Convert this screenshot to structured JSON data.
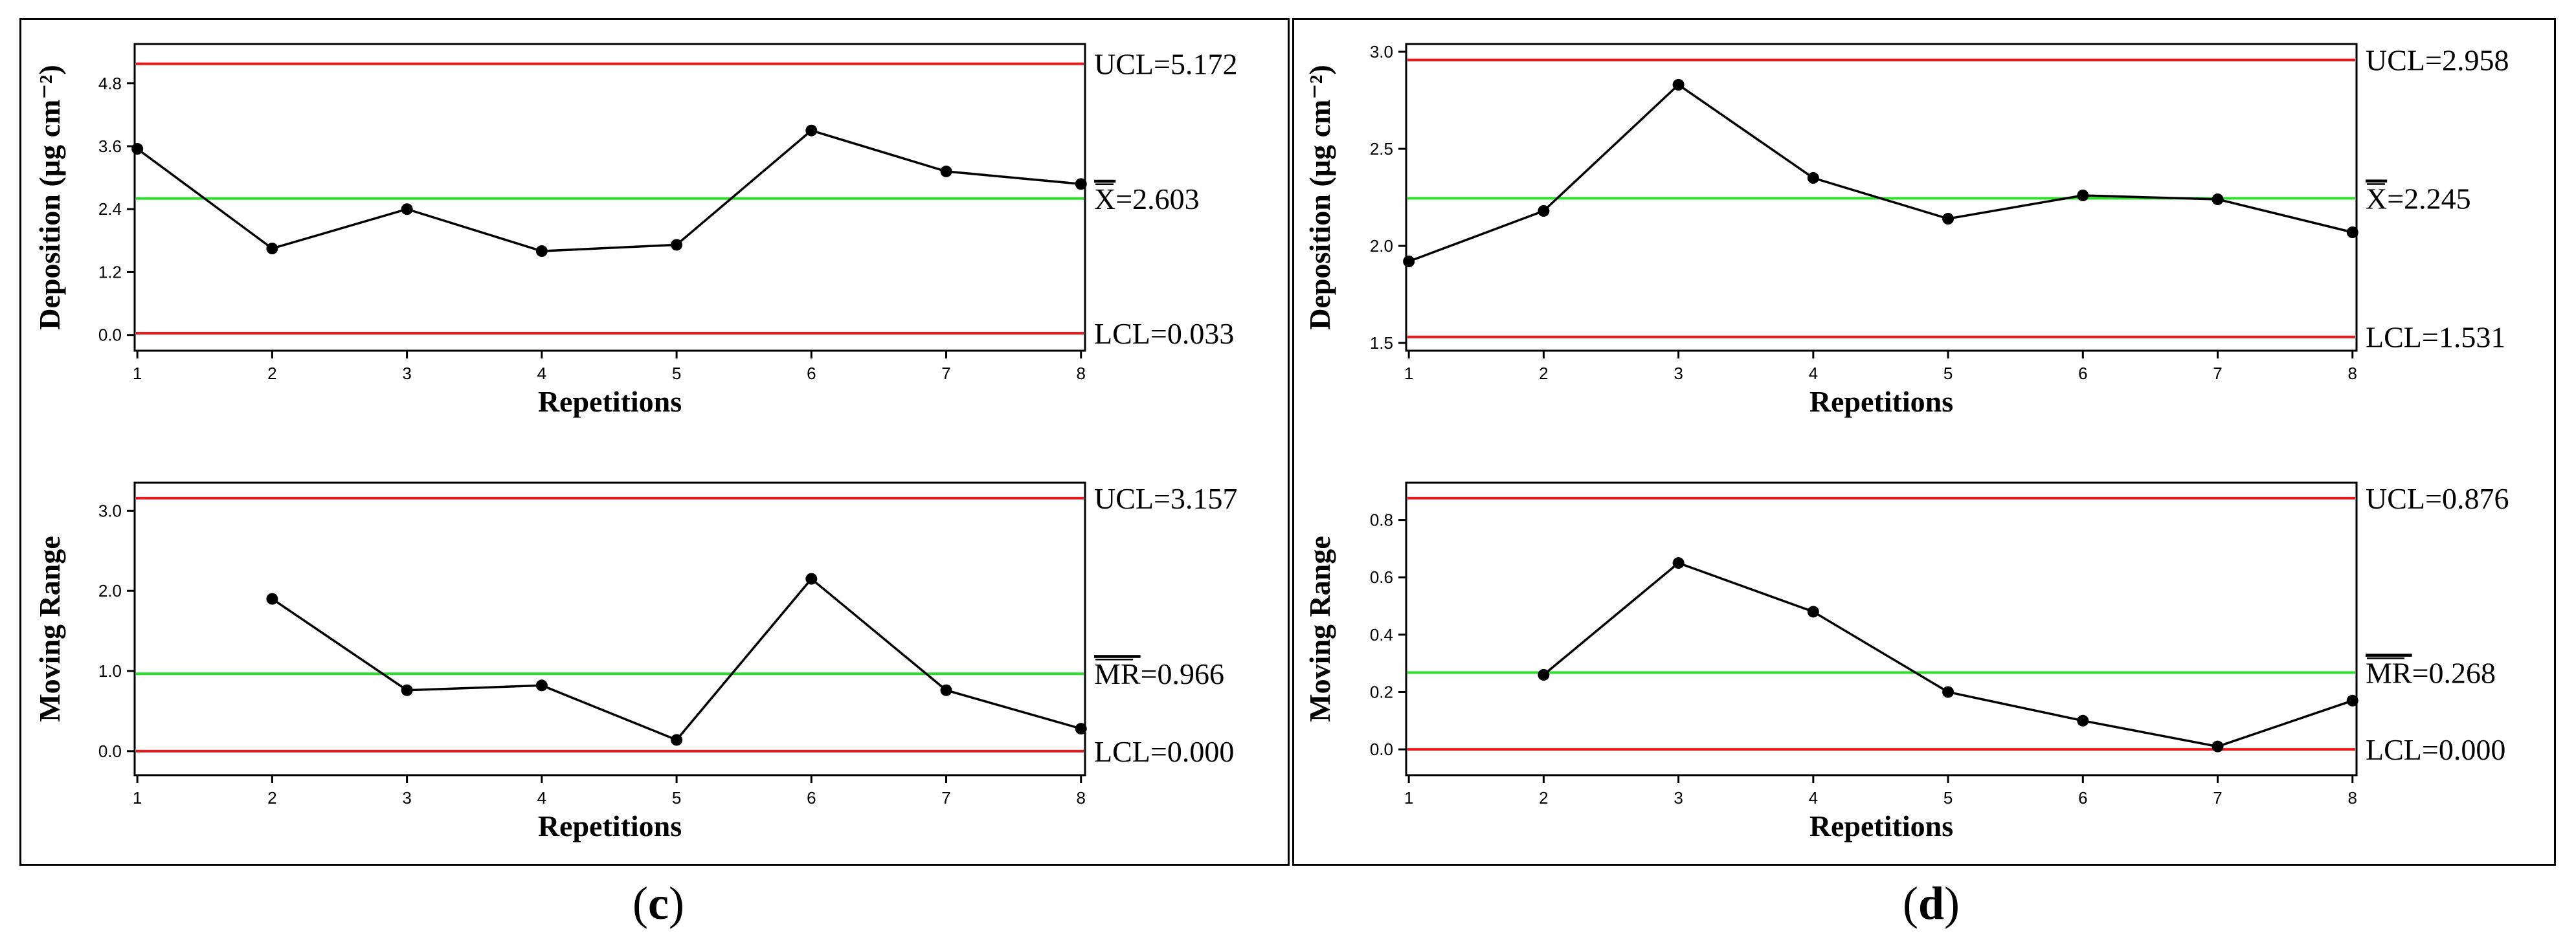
{
  "panels": [
    {
      "id": "c",
      "caption": "c"
    },
    {
      "id": "d",
      "caption": "d"
    }
  ],
  "chart_data": [
    {
      "type": "line",
      "panel": "c",
      "chart": "individuals",
      "ylabel": "Deposition (µg cm⁻²)",
      "xlabel": "Repetitions",
      "x": [
        1,
        2,
        3,
        4,
        5,
        6,
        7,
        8
      ],
      "values": [
        3.55,
        1.65,
        2.4,
        1.6,
        1.72,
        3.9,
        3.12,
        2.88
      ],
      "xticks": [
        "1",
        "2",
        "3",
        "4",
        "5",
        "6",
        "7",
        "8"
      ],
      "yticks": [
        "0.0",
        "1.2",
        "2.4",
        "3.6",
        "4.8"
      ],
      "ylim": [
        -0.3,
        5.55
      ],
      "ucl": 5.172,
      "center": 2.603,
      "lcl": 0.033,
      "ucl_label": "UCL=5.172",
      "center_label_symbol": "X",
      "center_label_value": "=2.603",
      "lcl_label": "LCL=0.033"
    },
    {
      "type": "line",
      "panel": "c",
      "chart": "moving-range",
      "ylabel": "Moving Range",
      "xlabel": "Repetitions",
      "x": [
        2,
        3,
        4,
        5,
        6,
        7,
        8
      ],
      "values": [
        1.9,
        0.76,
        0.82,
        0.14,
        2.15,
        0.76,
        0.28
      ],
      "xticks": [
        "1",
        "2",
        "3",
        "4",
        "5",
        "6",
        "7",
        "8"
      ],
      "yticks": [
        "0.0",
        "1.0",
        "2.0",
        "3.0"
      ],
      "ylim": [
        -0.3,
        3.35
      ],
      "ucl": 3.157,
      "center": 0.966,
      "lcl": 0.0,
      "ucl_label": "UCL=3.157",
      "center_label_symbol": "MR",
      "center_label_value": "=0.966",
      "lcl_label": "LCL=0.000"
    },
    {
      "type": "line",
      "panel": "d",
      "chart": "individuals",
      "ylabel": "Deposition (µg cm⁻²)",
      "xlabel": "Repetitions",
      "x": [
        1,
        2,
        3,
        4,
        5,
        6,
        7,
        8
      ],
      "values": [
        1.92,
        2.18,
        2.83,
        2.35,
        2.14,
        2.26,
        2.24,
        2.07
      ],
      "xticks": [
        "1",
        "2",
        "3",
        "4",
        "5",
        "6",
        "7",
        "8"
      ],
      "yticks": [
        "1.5",
        "2.0",
        "2.5",
        "3.0"
      ],
      "ylim": [
        1.46,
        3.04
      ],
      "ucl": 2.958,
      "center": 2.245,
      "lcl": 1.531,
      "ucl_label": "UCL=2.958",
      "center_label_symbol": "X",
      "center_label_value": "=2.245",
      "lcl_label": "LCL=1.531"
    },
    {
      "type": "line",
      "panel": "d",
      "chart": "moving-range",
      "ylabel": "Moving Range",
      "xlabel": "Repetitions",
      "x": [
        2,
        3,
        4,
        5,
        6,
        7,
        8
      ],
      "values": [
        0.26,
        0.65,
        0.48,
        0.2,
        0.1,
        0.01,
        0.17
      ],
      "xticks": [
        "1",
        "2",
        "3",
        "4",
        "5",
        "6",
        "7",
        "8"
      ],
      "yticks": [
        "0.0",
        "0.2",
        "0.4",
        "0.6",
        "0.8"
      ],
      "ylim": [
        -0.09,
        0.93
      ],
      "ucl": 0.876,
      "center": 0.268,
      "lcl": 0.0,
      "ucl_label": "UCL=0.876",
      "center_label_symbol": "MR",
      "center_label_value": "=0.268",
      "lcl_label": "LCL=0.000"
    }
  ],
  "colors": {
    "limit_line": "#e8191d",
    "center_line": "#2ce02c",
    "data_line": "#000000"
  }
}
